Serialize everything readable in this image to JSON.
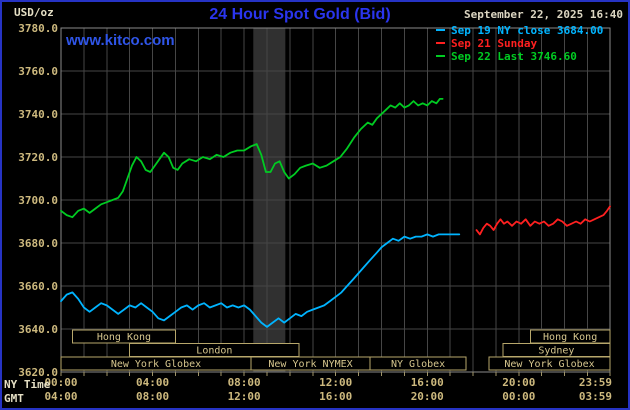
{
  "header": {
    "units_label": "USD/oz",
    "title": "24 Hour Spot Gold (Bid)",
    "datetime": "September 22, 2025 16:40",
    "watermark": "www.kitco.com",
    "legend": [
      {
        "label": "Sep 19 NY close 3684.00",
        "color": "#00b4ff"
      },
      {
        "label": "Sep 21 Sunday",
        "color": "#ff2020"
      },
      {
        "label": "Sep 22 Last 3746.60",
        "color": "#00cc22"
      }
    ]
  },
  "axes": {
    "x_label_row1": "NY Time",
    "x_label_row2": "GMT",
    "x_tick_hours": [
      0,
      4,
      8,
      12,
      16,
      20,
      23.983
    ],
    "x_ticks_ny": [
      "00:00",
      "04:00",
      "08:00",
      "12:00",
      "16:00",
      "20:00",
      "23:59"
    ],
    "x_ticks_gmt": [
      "04:00",
      "08:00",
      "12:00",
      "16:00",
      "20:00",
      "00:00",
      "03:59"
    ],
    "y_ticks": [
      "3780.0",
      "3760.0",
      "3740.0",
      "3720.0",
      "3700.0",
      "3680.0",
      "3660.0",
      "3640.0",
      "3620.0"
    ]
  },
  "highlight_band": {
    "start_hour": 8.4,
    "end_hour": 9.8
  },
  "sessions": [
    {
      "label": "Hong Kong",
      "row": 0,
      "start_hour": 0.5,
      "end_hour": 5.0
    },
    {
      "label": "Hong Kong",
      "row": 0,
      "start_hour": 20.5,
      "end_hour": 23.983
    },
    {
      "label": "London",
      "row": 1,
      "start_hour": 3.0,
      "end_hour": 10.4
    },
    {
      "label": "Sydney",
      "row": 1,
      "start_hour": 19.3,
      "end_hour": 23.983
    },
    {
      "label": "New York Globex",
      "row": 2,
      "start_hour": 0.0,
      "end_hour": 8.3
    },
    {
      "label": "New York NYMEX",
      "row": 2,
      "start_hour": 8.3,
      "end_hour": 13.5
    },
    {
      "label": "NY Globex",
      "row": 2,
      "start_hour": 13.5,
      "end_hour": 17.7
    },
    {
      "label": "New York Globex",
      "row": 2,
      "start_hour": 18.7,
      "end_hour": 23.983
    }
  ],
  "colors": {
    "background": "#000000",
    "frame_border": "#2633c4",
    "grid": "#464646",
    "plot_border": "#8a8a8a",
    "axis_text": "#cdb97e",
    "tick_mark": "#9f9468",
    "session_border": "#b7a76b",
    "session_text": "#d6c68e",
    "band": "#303030"
  },
  "chart_data": {
    "type": "line",
    "title": "24 Hour Spot Gold (Bid)",
    "ylabel": "USD/oz",
    "xlim": [
      0,
      23.983
    ],
    "ylim": [
      3620,
      3780
    ],
    "y_gridline_step": 20,
    "x_gridline_step_hours": 1,
    "series": [
      {
        "name": "Sep 19 NY close",
        "close_value": 3684.0,
        "color": "#00b4ff",
        "points": [
          [
            0,
            3653
          ],
          [
            0.25,
            3656
          ],
          [
            0.5,
            3657
          ],
          [
            0.75,
            3654
          ],
          [
            1,
            3650
          ],
          [
            1.25,
            3648
          ],
          [
            1.5,
            3650
          ],
          [
            1.75,
            3652
          ],
          [
            2,
            3651
          ],
          [
            2.25,
            3649
          ],
          [
            2.5,
            3647
          ],
          [
            2.75,
            3649
          ],
          [
            3,
            3651
          ],
          [
            3.25,
            3650
          ],
          [
            3.5,
            3652
          ],
          [
            3.75,
            3650
          ],
          [
            4,
            3648
          ],
          [
            4.25,
            3645
          ],
          [
            4.5,
            3644
          ],
          [
            4.75,
            3646
          ],
          [
            5,
            3648
          ],
          [
            5.25,
            3650
          ],
          [
            5.5,
            3651
          ],
          [
            5.75,
            3649
          ],
          [
            6,
            3651
          ],
          [
            6.25,
            3652
          ],
          [
            6.5,
            3650
          ],
          [
            6.75,
            3651
          ],
          [
            7,
            3652
          ],
          [
            7.25,
            3650
          ],
          [
            7.5,
            3651
          ],
          [
            7.75,
            3650
          ],
          [
            8,
            3651
          ],
          [
            8.25,
            3649
          ],
          [
            8.5,
            3646
          ],
          [
            8.75,
            3643
          ],
          [
            9,
            3641
          ],
          [
            9.25,
            3643
          ],
          [
            9.5,
            3645
          ],
          [
            9.75,
            3643
          ],
          [
            10,
            3645
          ],
          [
            10.25,
            3647
          ],
          [
            10.5,
            3646
          ],
          [
            10.75,
            3648
          ],
          [
            11,
            3649
          ],
          [
            11.25,
            3650
          ],
          [
            11.5,
            3651
          ],
          [
            11.75,
            3653
          ],
          [
            12,
            3655
          ],
          [
            12.25,
            3657
          ],
          [
            12.5,
            3660
          ],
          [
            12.75,
            3663
          ],
          [
            13,
            3666
          ],
          [
            13.25,
            3669
          ],
          [
            13.5,
            3672
          ],
          [
            13.75,
            3675
          ],
          [
            14,
            3678
          ],
          [
            14.25,
            3680
          ],
          [
            14.5,
            3682
          ],
          [
            14.75,
            3681
          ],
          [
            15,
            3683
          ],
          [
            15.25,
            3682
          ],
          [
            15.5,
            3683
          ],
          [
            15.75,
            3683
          ],
          [
            16,
            3684
          ],
          [
            16.25,
            3683
          ],
          [
            16.5,
            3684
          ],
          [
            16.75,
            3684
          ],
          [
            17,
            3684
          ],
          [
            17.4,
            3684
          ]
        ]
      },
      {
        "name": "Sep 21 Sunday",
        "color": "#ff2020",
        "points": [
          [
            18.15,
            3686
          ],
          [
            18.3,
            3684
          ],
          [
            18.45,
            3687
          ],
          [
            18.6,
            3689
          ],
          [
            18.75,
            3688
          ],
          [
            18.9,
            3686
          ],
          [
            19.05,
            3689
          ],
          [
            19.2,
            3691
          ],
          [
            19.35,
            3689
          ],
          [
            19.5,
            3690
          ],
          [
            19.7,
            3688
          ],
          [
            19.9,
            3690
          ],
          [
            20.1,
            3689
          ],
          [
            20.3,
            3691
          ],
          [
            20.5,
            3688
          ],
          [
            20.7,
            3690
          ],
          [
            20.9,
            3689
          ],
          [
            21.1,
            3690
          ],
          [
            21.3,
            3688
          ],
          [
            21.5,
            3689
          ],
          [
            21.7,
            3691
          ],
          [
            21.9,
            3690
          ],
          [
            22.1,
            3688
          ],
          [
            22.3,
            3689
          ],
          [
            22.5,
            3690
          ],
          [
            22.7,
            3689
          ],
          [
            22.9,
            3691
          ],
          [
            23.1,
            3690
          ],
          [
            23.3,
            3691
          ],
          [
            23.5,
            3692
          ],
          [
            23.7,
            3693
          ],
          [
            23.85,
            3695
          ],
          [
            23.983,
            3697
          ]
        ]
      },
      {
        "name": "Sep 22 Last",
        "last_value": 3746.6,
        "color": "#00cc22",
        "points": [
          [
            0,
            3695
          ],
          [
            0.25,
            3693
          ],
          [
            0.5,
            3692
          ],
          [
            0.75,
            3695
          ],
          [
            1,
            3696
          ],
          [
            1.25,
            3694
          ],
          [
            1.5,
            3696
          ],
          [
            1.75,
            3698
          ],
          [
            2,
            3699
          ],
          [
            2.25,
            3700
          ],
          [
            2.5,
            3701
          ],
          [
            2.7,
            3704
          ],
          [
            2.9,
            3710
          ],
          [
            3.1,
            3716
          ],
          [
            3.3,
            3720
          ],
          [
            3.5,
            3718
          ],
          [
            3.7,
            3714
          ],
          [
            3.9,
            3713
          ],
          [
            4.1,
            3716
          ],
          [
            4.3,
            3719
          ],
          [
            4.5,
            3722
          ],
          [
            4.7,
            3720
          ],
          [
            4.9,
            3715
          ],
          [
            5.1,
            3714
          ],
          [
            5.3,
            3717
          ],
          [
            5.6,
            3719
          ],
          [
            5.9,
            3718
          ],
          [
            6.2,
            3720
          ],
          [
            6.5,
            3719
          ],
          [
            6.8,
            3721
          ],
          [
            7.1,
            3720
          ],
          [
            7.4,
            3722
          ],
          [
            7.7,
            3723
          ],
          [
            8,
            3723
          ],
          [
            8.3,
            3725
          ],
          [
            8.55,
            3726
          ],
          [
            8.75,
            3721
          ],
          [
            8.95,
            3713
          ],
          [
            9.15,
            3713
          ],
          [
            9.35,
            3717
          ],
          [
            9.55,
            3718
          ],
          [
            9.75,
            3713
          ],
          [
            9.95,
            3710
          ],
          [
            10.2,
            3712
          ],
          [
            10.45,
            3715
          ],
          [
            10.7,
            3716
          ],
          [
            11,
            3717
          ],
          [
            11.3,
            3715
          ],
          [
            11.6,
            3716
          ],
          [
            11.9,
            3718
          ],
          [
            12.2,
            3720
          ],
          [
            12.5,
            3724
          ],
          [
            12.8,
            3729
          ],
          [
            13.1,
            3733
          ],
          [
            13.4,
            3736
          ],
          [
            13.6,
            3735
          ],
          [
            13.8,
            3738
          ],
          [
            14,
            3740
          ],
          [
            14.2,
            3742
          ],
          [
            14.4,
            3744
          ],
          [
            14.6,
            3743
          ],
          [
            14.8,
            3745
          ],
          [
            15,
            3743
          ],
          [
            15.2,
            3744
          ],
          [
            15.4,
            3746
          ],
          [
            15.6,
            3744
          ],
          [
            15.8,
            3745
          ],
          [
            16,
            3744
          ],
          [
            16.2,
            3746
          ],
          [
            16.4,
            3745
          ],
          [
            16.55,
            3747
          ],
          [
            16.67,
            3747
          ]
        ]
      }
    ]
  }
}
